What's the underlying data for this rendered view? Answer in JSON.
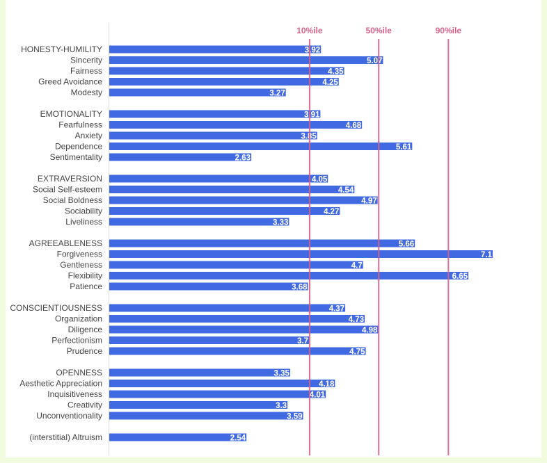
{
  "chart_data": {
    "type": "bar",
    "orientation": "horizontal",
    "categories": [
      "HONESTY-HUMILITY",
      "Sincerity",
      "Fairness",
      "Greed Avoidance",
      "Modesty",
      "",
      "EMOTIONALITY",
      "Fearfulness",
      "Anxiety",
      "Dependence",
      "Sentimentality",
      "",
      "EXTRAVERSION",
      "Social Self-esteem",
      "Social Boldness",
      "Sociability",
      "Liveliness",
      "",
      "AGREEABLENESS",
      "Forgiveness",
      "Gentleness",
      "Flexibility",
      "Patience",
      "",
      "CONSCIENTIOUSNESS",
      "Organization",
      "Diligence",
      "Perfectionism",
      "Prudence",
      "",
      "OPENNESS",
      "Aesthetic Appreciation",
      "Inquisitiveness",
      "Creativity",
      "Unconventionality",
      "",
      "(interstitial) Altruism"
    ],
    "values": [
      3.92,
      5.07,
      4.35,
      4.25,
      3.27,
      null,
      3.91,
      4.68,
      3.85,
      5.61,
      2.63,
      null,
      4.05,
      4.54,
      4.97,
      4.27,
      3.33,
      null,
      5.66,
      7.1,
      4.7,
      6.65,
      3.68,
      null,
      4.37,
      4.73,
      4.98,
      3.7,
      4.75,
      null,
      3.35,
      4.18,
      4.01,
      3.3,
      3.59,
      null,
      2.54
    ],
    "value_labels": [
      "3.92",
      "5.07",
      "4.35",
      "4.25",
      "3.27",
      "",
      "3.91",
      "4.68",
      "3.85",
      "5.61",
      "2.63",
      "",
      "4.05",
      "4.54",
      "4.97",
      "4.27",
      "3.33",
      "",
      "5.66",
      "7.1",
      "4.7",
      "6.65",
      "3.68",
      "",
      "4.37",
      "4.73",
      "4.98",
      "3.7",
      "4.75",
      "",
      "3.35",
      "4.18",
      "4.01",
      "3.3",
      "3.59",
      "",
      "2.54"
    ],
    "reference_lines": [
      {
        "label": "10%ile",
        "value": 3.71
      },
      {
        "label": "50%ile",
        "value": 4.99
      },
      {
        "label": "90%ile",
        "value": 6.28
      }
    ],
    "xlim": [
      0,
      7.9
    ],
    "grid": false,
    "title": "",
    "xlabel": "",
    "ylabel": "",
    "colors": {
      "bar": "#4169e1",
      "reference": "#d9608a",
      "background": "#f1fcdf"
    }
  }
}
